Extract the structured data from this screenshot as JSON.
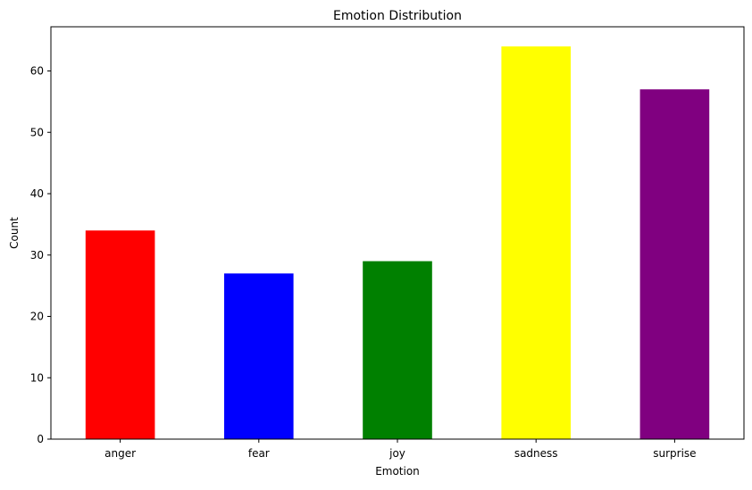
{
  "chart_data": {
    "type": "bar",
    "title": "Emotion Distribution",
    "xlabel": "Emotion",
    "ylabel": "Count",
    "categories": [
      "anger",
      "fear",
      "joy",
      "sadness",
      "surprise"
    ],
    "values": [
      34,
      27,
      29,
      64,
      57
    ],
    "colors": [
      "#ff0000",
      "#0000ff",
      "#008000",
      "#ffff00",
      "#800080"
    ],
    "ylim": [
      0,
      67.2
    ],
    "yticks": [
      0,
      10,
      20,
      30,
      40,
      50,
      60
    ],
    "grid": false,
    "legend": "none"
  }
}
